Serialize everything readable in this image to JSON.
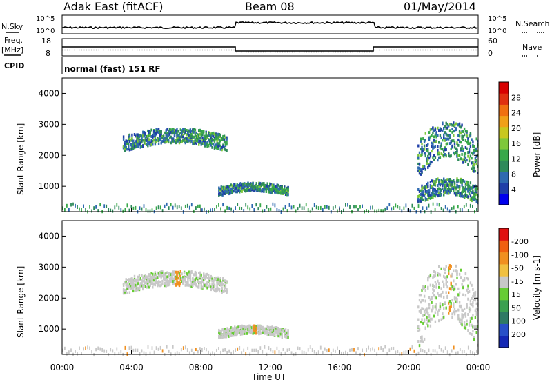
{
  "header": {
    "station": "Adak East (fitACF)",
    "beam": "Beam 08",
    "date": "01/May/2014"
  },
  "top_panels": {
    "nsky_label": "N.Sky",
    "nsearch_label": "N.Search",
    "freq_label": "Freq.",
    "freq_unit": "[MHz]",
    "nave_label": "Nave",
    "cpid_label": "CPID",
    "cpid_text": "normal (fast) 151 RF",
    "noise_ticks": [
      "10^5",
      "10^0"
    ],
    "freq_ticks": [
      "18",
      "8"
    ],
    "nave_ticks": [
      "60",
      "0"
    ]
  },
  "chart_data": [
    {
      "type": "heatmap",
      "title": "Power",
      "ylabel": "Slant Range [km]",
      "xlabel": "",
      "xlim": [
        "00:00",
        "00:00"
      ],
      "ylim": [
        180,
        4500
      ],
      "yticks": [
        "1000",
        "2000",
        "3000",
        "4000"
      ],
      "colorbar": {
        "label": "Power [dB]",
        "ticks": [
          "4",
          "8",
          "12",
          "16",
          "20",
          "24",
          "28"
        ],
        "colors": [
          "#0000ee",
          "#1f3fa8",
          "#2e6ab0",
          "#2e8a5a",
          "#38a84a",
          "#7ec83a",
          "#c8c81e",
          "#f0a018",
          "#f07010",
          "#e03010",
          "#d80000"
        ]
      },
      "echo_regions": [
        {
          "start": "03:30",
          "end": "09:30",
          "range_km": [
            2200,
            2900
          ],
          "power_db": [
            4,
            16
          ]
        },
        {
          "start": "09:00",
          "end": "13:00",
          "range_km": [
            750,
            1150
          ],
          "power_db": [
            4,
            16
          ]
        },
        {
          "start": "20:30",
          "end": "24:00",
          "range_km": [
            1400,
            3100
          ],
          "power_db": [
            4,
            20
          ]
        },
        {
          "start": "20:30",
          "end": "24:00",
          "range_km": [
            500,
            1300
          ],
          "power_db": [
            4,
            16
          ]
        }
      ]
    },
    {
      "type": "heatmap",
      "title": "Velocity",
      "ylabel": "Slant Range [km]",
      "xlabel": "Time UT",
      "xticks": [
        "00:00",
        "04:00",
        "08:00",
        "12:00",
        "16:00",
        "20:00",
        "00:00"
      ],
      "ylim": [
        180,
        4500
      ],
      "yticks": [
        "1000",
        "2000",
        "3000",
        "4000"
      ],
      "colorbar": {
        "label": "Velocity [m s-1]",
        "ticks": [
          "200",
          "100",
          "50",
          "15",
          "-15",
          "-50",
          "-100",
          "-200"
        ],
        "colors": [
          "#1428b4",
          "#2850c8",
          "#2e7a64",
          "#3aa050",
          "#66cc33",
          "#c8c8c8",
          "#f0c040",
          "#f09020",
          "#f06010",
          "#e01010"
        ]
      },
      "echo_regions": [
        {
          "start": "03:30",
          "end": "09:30",
          "range_km": [
            2200,
            2900
          ],
          "velocity": "ground scatter (~0)"
        },
        {
          "start": "09:00",
          "end": "13:00",
          "range_km": [
            750,
            1150
          ],
          "velocity": "~15 to 50"
        },
        {
          "start": "20:30",
          "end": "24:00",
          "range_km": [
            500,
            3100
          ],
          "velocity": "ground scatter (~0)"
        }
      ]
    }
  ]
}
